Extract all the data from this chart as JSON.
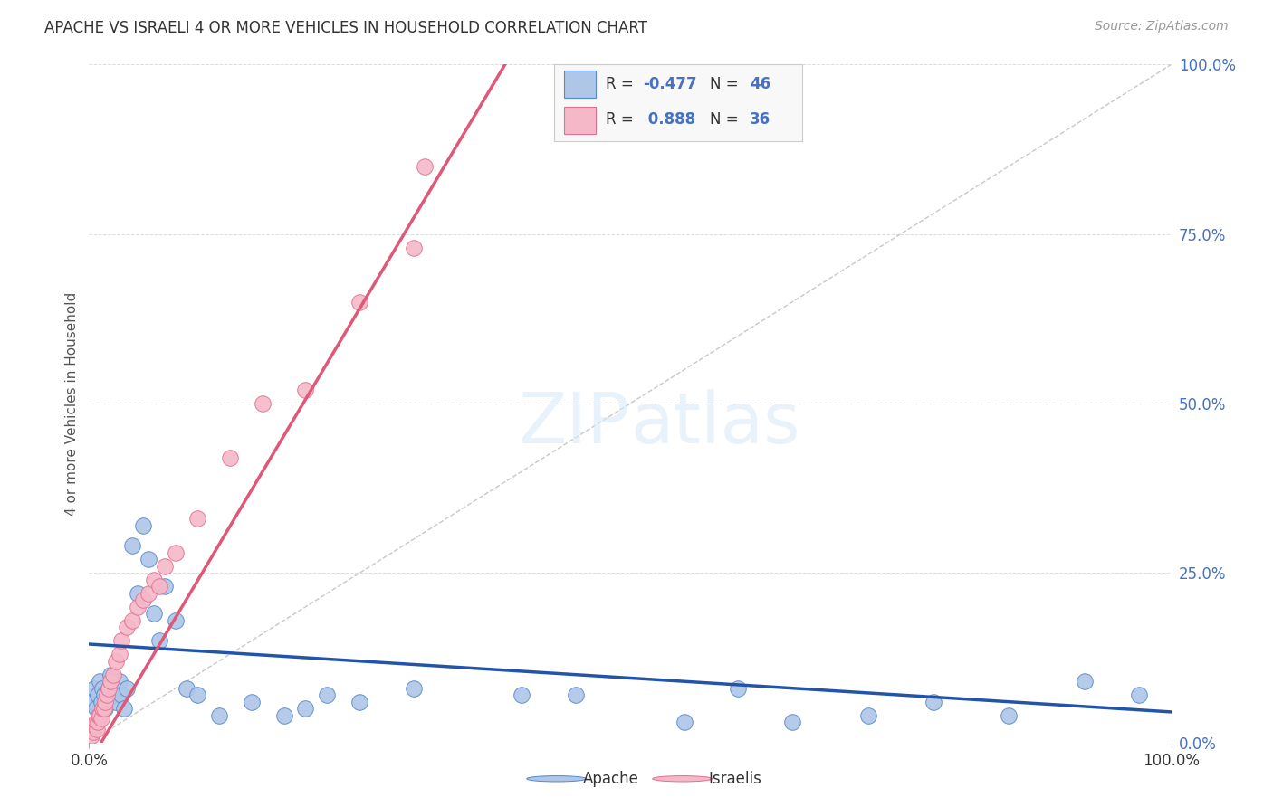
{
  "title": "APACHE VS ISRAELI 4 OR MORE VEHICLES IN HOUSEHOLD CORRELATION CHART",
  "source": "Source: ZipAtlas.com",
  "ylabel": "4 or more Vehicles in Household",
  "legend_apache_r": "-0.477",
  "legend_apache_n": "46",
  "legend_israeli_r": "0.888",
  "legend_israeli_n": "36",
  "title_color": "#333333",
  "source_color": "#999999",
  "right_axis_color": "#4472c4",
  "apache_color": "#aec6e8",
  "apache_edge_color": "#5588cc",
  "apache_line_color": "#2255aa",
  "israeli_color": "#f5b8c8",
  "israeli_edge_color": "#e07090",
  "israeli_line_color": "#e05878",
  "ref_line_color": "#c8c8c8",
  "grid_color": "#dddddd",
  "background_color": "#ffffff",
  "apache_points_x": [
    0.3,
    0.5,
    0.6,
    0.8,
    1.0,
    1.1,
    1.2,
    1.4,
    1.5,
    1.6,
    1.8,
    2.0,
    2.2,
    2.4,
    2.5,
    2.8,
    3.0,
    3.2,
    3.5,
    4.0,
    4.5,
    5.0,
    5.5,
    6.0,
    6.5,
    7.0,
    8.0,
    9.0,
    10.0,
    12.0,
    15.0,
    18.0,
    20.0,
    22.0,
    25.0,
    30.0,
    40.0,
    45.0,
    55.0,
    60.0,
    65.0,
    72.0,
    78.0,
    85.0,
    92.0,
    97.0
  ],
  "apache_points_y": [
    6.0,
    8.0,
    5.0,
    7.0,
    9.0,
    6.0,
    8.0,
    7.0,
    5.0,
    6.0,
    8.0,
    10.0,
    7.0,
    8.0,
    6.0,
    9.0,
    7.0,
    5.0,
    8.0,
    29.0,
    22.0,
    32.0,
    27.0,
    19.0,
    15.0,
    23.0,
    18.0,
    8.0,
    7.0,
    4.0,
    6.0,
    4.0,
    5.0,
    7.0,
    6.0,
    8.0,
    7.0,
    7.0,
    3.0,
    8.0,
    3.0,
    4.0,
    6.0,
    4.0,
    9.0,
    7.0
  ],
  "israeli_points_x": [
    0.2,
    0.3,
    0.4,
    0.5,
    0.6,
    0.7,
    0.8,
    0.9,
    1.0,
    1.1,
    1.2,
    1.4,
    1.5,
    1.6,
    1.8,
    2.0,
    2.2,
    2.5,
    2.8,
    3.0,
    3.5,
    4.0,
    4.5,
    5.0,
    5.5,
    6.0,
    6.5,
    7.0,
    8.0,
    10.0,
    13.0,
    16.0,
    20.0,
    25.0,
    30.0,
    31.0
  ],
  "israeli_points_y": [
    1.0,
    2.0,
    1.5,
    2.5,
    3.0,
    2.0,
    3.0,
    4.0,
    4.0,
    3.5,
    5.0,
    5.0,
    6.0,
    7.0,
    8.0,
    9.0,
    10.0,
    12.0,
    13.0,
    15.0,
    17.0,
    18.0,
    20.0,
    21.0,
    22.0,
    24.0,
    23.0,
    26.0,
    28.0,
    33.0,
    42.0,
    50.0,
    52.0,
    65.0,
    73.0,
    85.0
  ],
  "xlim": [
    0.0,
    100.0
  ],
  "ylim": [
    0.0,
    100.0
  ],
  "ytick_values": [
    0,
    25,
    50,
    75,
    100
  ],
  "ytick_labels": [
    "0.0%",
    "25.0%",
    "50.0%",
    "75.0%",
    "100.0%"
  ],
  "xtick_values": [
    0,
    100
  ],
  "xtick_labels": [
    "0.0%",
    "100.0%"
  ]
}
